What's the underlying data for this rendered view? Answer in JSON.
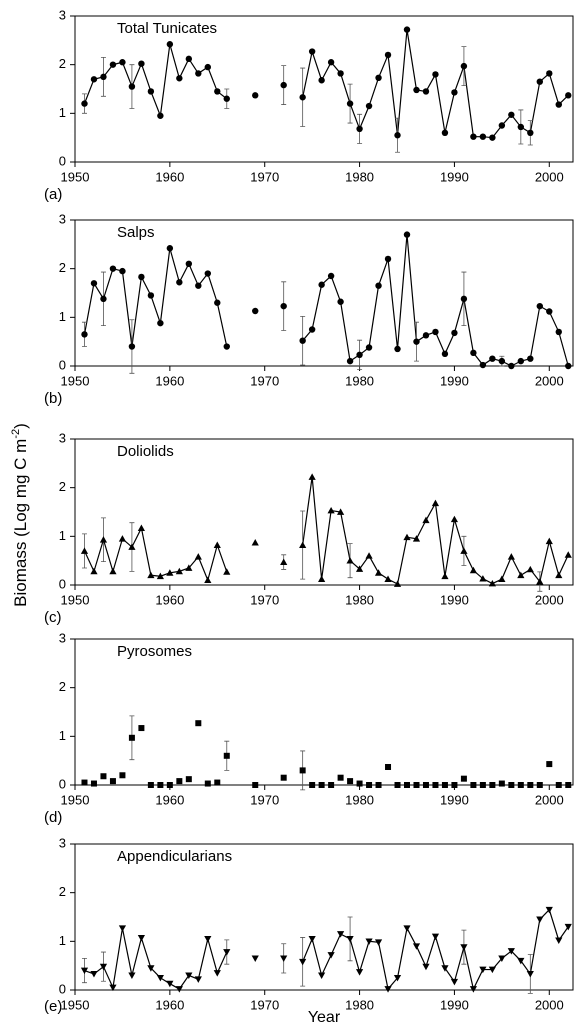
{
  "ylabel": [
    "Biomass  (Log mg C m",
    "-2",
    ")"
  ],
  "xlabel": "Year",
  "chart_data": [
    {
      "type": "line",
      "title": "Total Tunicates",
      "panel_label": "(a)",
      "marker": "circle",
      "lines": true,
      "color": "#000000",
      "x": [
        1951,
        1952,
        1953,
        1954,
        1955,
        1956,
        1957,
        1958,
        1959,
        1960,
        1961,
        1962,
        1963,
        1964,
        1965,
        1966,
        1967,
        1968,
        1969,
        1970,
        1971,
        1972,
        1973,
        1974,
        1975,
        1976,
        1977,
        1978,
        1979,
        1980,
        1981,
        1982,
        1983,
        1984,
        1985,
        1986,
        1987,
        1988,
        1989,
        1990,
        1991,
        1992,
        1993,
        1994,
        1995,
        1996,
        1997,
        1998,
        1999,
        2000,
        2001,
        2002
      ],
      "values": [
        1.2,
        1.7,
        1.75,
        2.0,
        2.05,
        1.55,
        2.02,
        1.45,
        0.95,
        2.42,
        1.72,
        2.12,
        1.82,
        1.95,
        1.45,
        1.3,
        null,
        null,
        1.37,
        null,
        null,
        1.58,
        null,
        1.33,
        2.27,
        1.68,
        2.05,
        1.82,
        1.2,
        0.68,
        1.15,
        1.73,
        2.2,
        0.55,
        2.72,
        1.48,
        1.45,
        1.8,
        0.6,
        1.43,
        1.97,
        0.52,
        0.52,
        0.5,
        0.75,
        0.97,
        0.72,
        0.6,
        1.65,
        1.82,
        1.18,
        1.37
      ],
      "errors": [
        0.2,
        null,
        0.4,
        null,
        null,
        0.45,
        null,
        null,
        null,
        null,
        null,
        null,
        null,
        null,
        null,
        0.2,
        null,
        null,
        null,
        null,
        null,
        0.4,
        null,
        0.6,
        null,
        null,
        null,
        null,
        0.4,
        0.3,
        null,
        null,
        null,
        0.35,
        null,
        null,
        null,
        null,
        null,
        null,
        0.4,
        null,
        null,
        null,
        null,
        null,
        0.35,
        0.25,
        null,
        null,
        null,
        null
      ],
      "xlim": [
        1950,
        2002.5
      ],
      "xticks": [
        1950,
        1960,
        1970,
        1980,
        1990,
        2000
      ],
      "ylim": [
        0,
        3
      ],
      "yticks": [
        0,
        1,
        2,
        3
      ]
    },
    {
      "type": "line",
      "title": "Salps",
      "panel_label": "(b)",
      "marker": "circle",
      "lines": true,
      "color": "#000000",
      "x": [
        1951,
        1952,
        1953,
        1954,
        1955,
        1956,
        1957,
        1958,
        1959,
        1960,
        1961,
        1962,
        1963,
        1964,
        1965,
        1966,
        1967,
        1968,
        1969,
        1970,
        1971,
        1972,
        1973,
        1974,
        1975,
        1976,
        1977,
        1978,
        1979,
        1980,
        1981,
        1982,
        1983,
        1984,
        1985,
        1986,
        1987,
        1988,
        1989,
        1990,
        1991,
        1992,
        1993,
        1994,
        1995,
        1996,
        1997,
        1998,
        1999,
        2000,
        2001,
        2002
      ],
      "values": [
        0.65,
        1.7,
        1.38,
        2.0,
        1.95,
        0.4,
        1.83,
        1.45,
        0.88,
        2.42,
        1.72,
        2.1,
        1.65,
        1.9,
        1.3,
        0.4,
        null,
        null,
        1.13,
        null,
        null,
        1.23,
        null,
        0.52,
        0.75,
        1.67,
        1.85,
        1.32,
        0.1,
        0.23,
        0.38,
        1.65,
        2.2,
        0.35,
        2.7,
        0.5,
        0.63,
        0.7,
        0.25,
        0.68,
        1.38,
        0.27,
        0.02,
        0.15,
        0.1,
        0,
        0.1,
        0.15,
        1.23,
        1.12,
        0.7,
        0
      ],
      "errors": [
        0.25,
        null,
        0.55,
        null,
        null,
        0.55,
        null,
        null,
        null,
        null,
        null,
        null,
        null,
        null,
        null,
        null,
        null,
        null,
        null,
        null,
        null,
        0.5,
        null,
        0.5,
        null,
        null,
        null,
        null,
        null,
        0.3,
        null,
        null,
        null,
        null,
        null,
        0.4,
        null,
        null,
        null,
        null,
        0.55,
        null,
        null,
        null,
        0.1,
        null,
        null,
        null,
        null,
        null,
        null,
        null
      ],
      "xlim": [
        1950,
        2002.5
      ],
      "xticks": [
        1950,
        1960,
        1970,
        1980,
        1990,
        2000
      ],
      "ylim": [
        0,
        3
      ],
      "yticks": [
        0,
        1,
        2,
        3
      ]
    },
    {
      "type": "line",
      "title": "Doliolids",
      "panel_label": "(c)",
      "marker": "triangle-up",
      "lines": true,
      "color": "#000000",
      "x": [
        1951,
        1952,
        1953,
        1954,
        1955,
        1956,
        1957,
        1958,
        1959,
        1960,
        1961,
        1962,
        1963,
        1964,
        1965,
        1966,
        1967,
        1968,
        1969,
        1970,
        1971,
        1972,
        1973,
        1974,
        1975,
        1976,
        1977,
        1978,
        1979,
        1980,
        1981,
        1982,
        1983,
        1984,
        1985,
        1986,
        1987,
        1988,
        1989,
        1990,
        1991,
        1992,
        1993,
        1994,
        1995,
        1996,
        1997,
        1998,
        1999,
        2000,
        2001,
        2002
      ],
      "values": [
        0.7,
        0.28,
        0.93,
        0.28,
        0.95,
        0.78,
        1.17,
        0.2,
        0.18,
        0.25,
        0.28,
        0.35,
        0.58,
        0.1,
        0.82,
        0.27,
        null,
        null,
        0.87,
        null,
        null,
        0.47,
        null,
        0.82,
        2.22,
        0.12,
        1.53,
        1.5,
        0.5,
        0.33,
        0.6,
        0.25,
        0.12,
        0.02,
        0.98,
        0.95,
        1.33,
        1.68,
        0.18,
        1.35,
        0.7,
        0.3,
        0.13,
        0.03,
        0.12,
        0.58,
        0.2,
        0.32,
        0.07,
        0.9,
        0.2,
        0.62
      ],
      "errors": [
        0.35,
        null,
        0.45,
        null,
        null,
        0.5,
        null,
        null,
        null,
        null,
        null,
        null,
        null,
        null,
        null,
        null,
        null,
        null,
        null,
        null,
        null,
        0.15,
        null,
        0.7,
        null,
        null,
        null,
        null,
        0.35,
        null,
        null,
        null,
        null,
        null,
        null,
        null,
        null,
        null,
        null,
        null,
        0.3,
        null,
        null,
        null,
        null,
        null,
        null,
        null,
        0.2,
        null,
        null,
        null
      ],
      "xlim": [
        1950,
        2002.5
      ],
      "xticks": [
        1950,
        1960,
        1970,
        1980,
        1990,
        2000
      ],
      "ylim": [
        0,
        3
      ],
      "yticks": [
        0,
        1,
        2,
        3
      ]
    },
    {
      "type": "line",
      "title": "Pyrosomes",
      "panel_label": "(d)",
      "marker": "square",
      "lines": false,
      "color": "#000000",
      "x": [
        1951,
        1952,
        1953,
        1954,
        1955,
        1956,
        1957,
        1958,
        1959,
        1960,
        1961,
        1962,
        1963,
        1964,
        1965,
        1966,
        1967,
        1968,
        1969,
        1970,
        1971,
        1972,
        1973,
        1974,
        1975,
        1976,
        1977,
        1978,
        1979,
        1980,
        1981,
        1982,
        1983,
        1984,
        1985,
        1986,
        1987,
        1988,
        1989,
        1990,
        1991,
        1992,
        1993,
        1994,
        1995,
        1996,
        1997,
        1998,
        1999,
        2000,
        2001,
        2002
      ],
      "values": [
        0.05,
        0.03,
        0.18,
        0.08,
        0.2,
        0.97,
        1.17,
        0,
        0,
        0,
        0.08,
        0.12,
        1.27,
        0.03,
        0.05,
        0.6,
        null,
        null,
        0,
        null,
        null,
        0.15,
        null,
        0.3,
        0,
        0,
        0,
        0.15,
        0.08,
        0.03,
        0,
        0,
        0.37,
        0,
        0,
        0,
        0,
        0,
        0,
        0,
        0.13,
        0,
        0,
        0,
        0.03,
        0,
        0,
        0,
        0,
        0.43,
        0,
        0
      ],
      "errors": [
        null,
        null,
        null,
        null,
        null,
        0.45,
        null,
        null,
        null,
        null,
        null,
        null,
        null,
        null,
        null,
        0.3,
        null,
        null,
        null,
        null,
        null,
        null,
        null,
        0.4,
        null,
        null,
        null,
        null,
        null,
        null,
        null,
        null,
        null,
        null,
        null,
        null,
        null,
        null,
        null,
        null,
        null,
        null,
        null,
        null,
        null,
        null,
        null,
        null,
        null,
        null,
        null,
        null
      ],
      "xlim": [
        1950,
        2002.5
      ],
      "xticks": [
        1950,
        1960,
        1970,
        1980,
        1990,
        2000
      ],
      "ylim": [
        0,
        3
      ],
      "yticks": [
        0,
        1,
        2,
        3
      ]
    },
    {
      "type": "line",
      "title": "Appendicularians",
      "panel_label": "(e)",
      "marker": "triangle-down",
      "lines": true,
      "color": "#000000",
      "x": [
        1951,
        1952,
        1953,
        1954,
        1955,
        1956,
        1957,
        1958,
        1959,
        1960,
        1961,
        1962,
        1963,
        1964,
        1965,
        1966,
        1967,
        1968,
        1969,
        1970,
        1971,
        1972,
        1973,
        1974,
        1975,
        1976,
        1977,
        1978,
        1979,
        1980,
        1981,
        1982,
        1983,
        1984,
        1985,
        1986,
        1987,
        1988,
        1989,
        1990,
        1991,
        1992,
        1993,
        1994,
        1995,
        1996,
        1997,
        1998,
        1999,
        2000,
        2001,
        2002
      ],
      "values": [
        0.4,
        0.33,
        0.48,
        0.05,
        1.27,
        0.3,
        1.07,
        0.45,
        0.25,
        0.13,
        0.02,
        0.3,
        0.22,
        1.05,
        0.35,
        0.78,
        null,
        null,
        0.65,
        null,
        null,
        0.65,
        null,
        0.58,
        1.05,
        0.3,
        0.72,
        1.15,
        1.05,
        0.37,
        1.0,
        0.98,
        0.02,
        0.25,
        1.27,
        0.9,
        0.48,
        1.1,
        0.45,
        0.17,
        0.88,
        0.02,
        0.42,
        0.42,
        0.65,
        0.8,
        0.6,
        0.33,
        1.45,
        1.65,
        1.02,
        1.3
      ],
      "errors": [
        0.25,
        null,
        0.3,
        null,
        null,
        null,
        null,
        null,
        null,
        null,
        null,
        null,
        null,
        null,
        null,
        0.25,
        null,
        null,
        null,
        null,
        null,
        0.3,
        null,
        0.5,
        null,
        null,
        null,
        null,
        0.45,
        null,
        null,
        null,
        null,
        null,
        null,
        null,
        null,
        null,
        null,
        null,
        0.35,
        null,
        null,
        null,
        null,
        null,
        null,
        0.4,
        null,
        null,
        null,
        null
      ],
      "xlim": [
        1950,
        2002.5
      ],
      "xticks": [
        1950,
        1960,
        1970,
        1980,
        1990,
        2000
      ],
      "ylim": [
        0,
        3
      ],
      "yticks": [
        0,
        1,
        2,
        3
      ]
    }
  ]
}
